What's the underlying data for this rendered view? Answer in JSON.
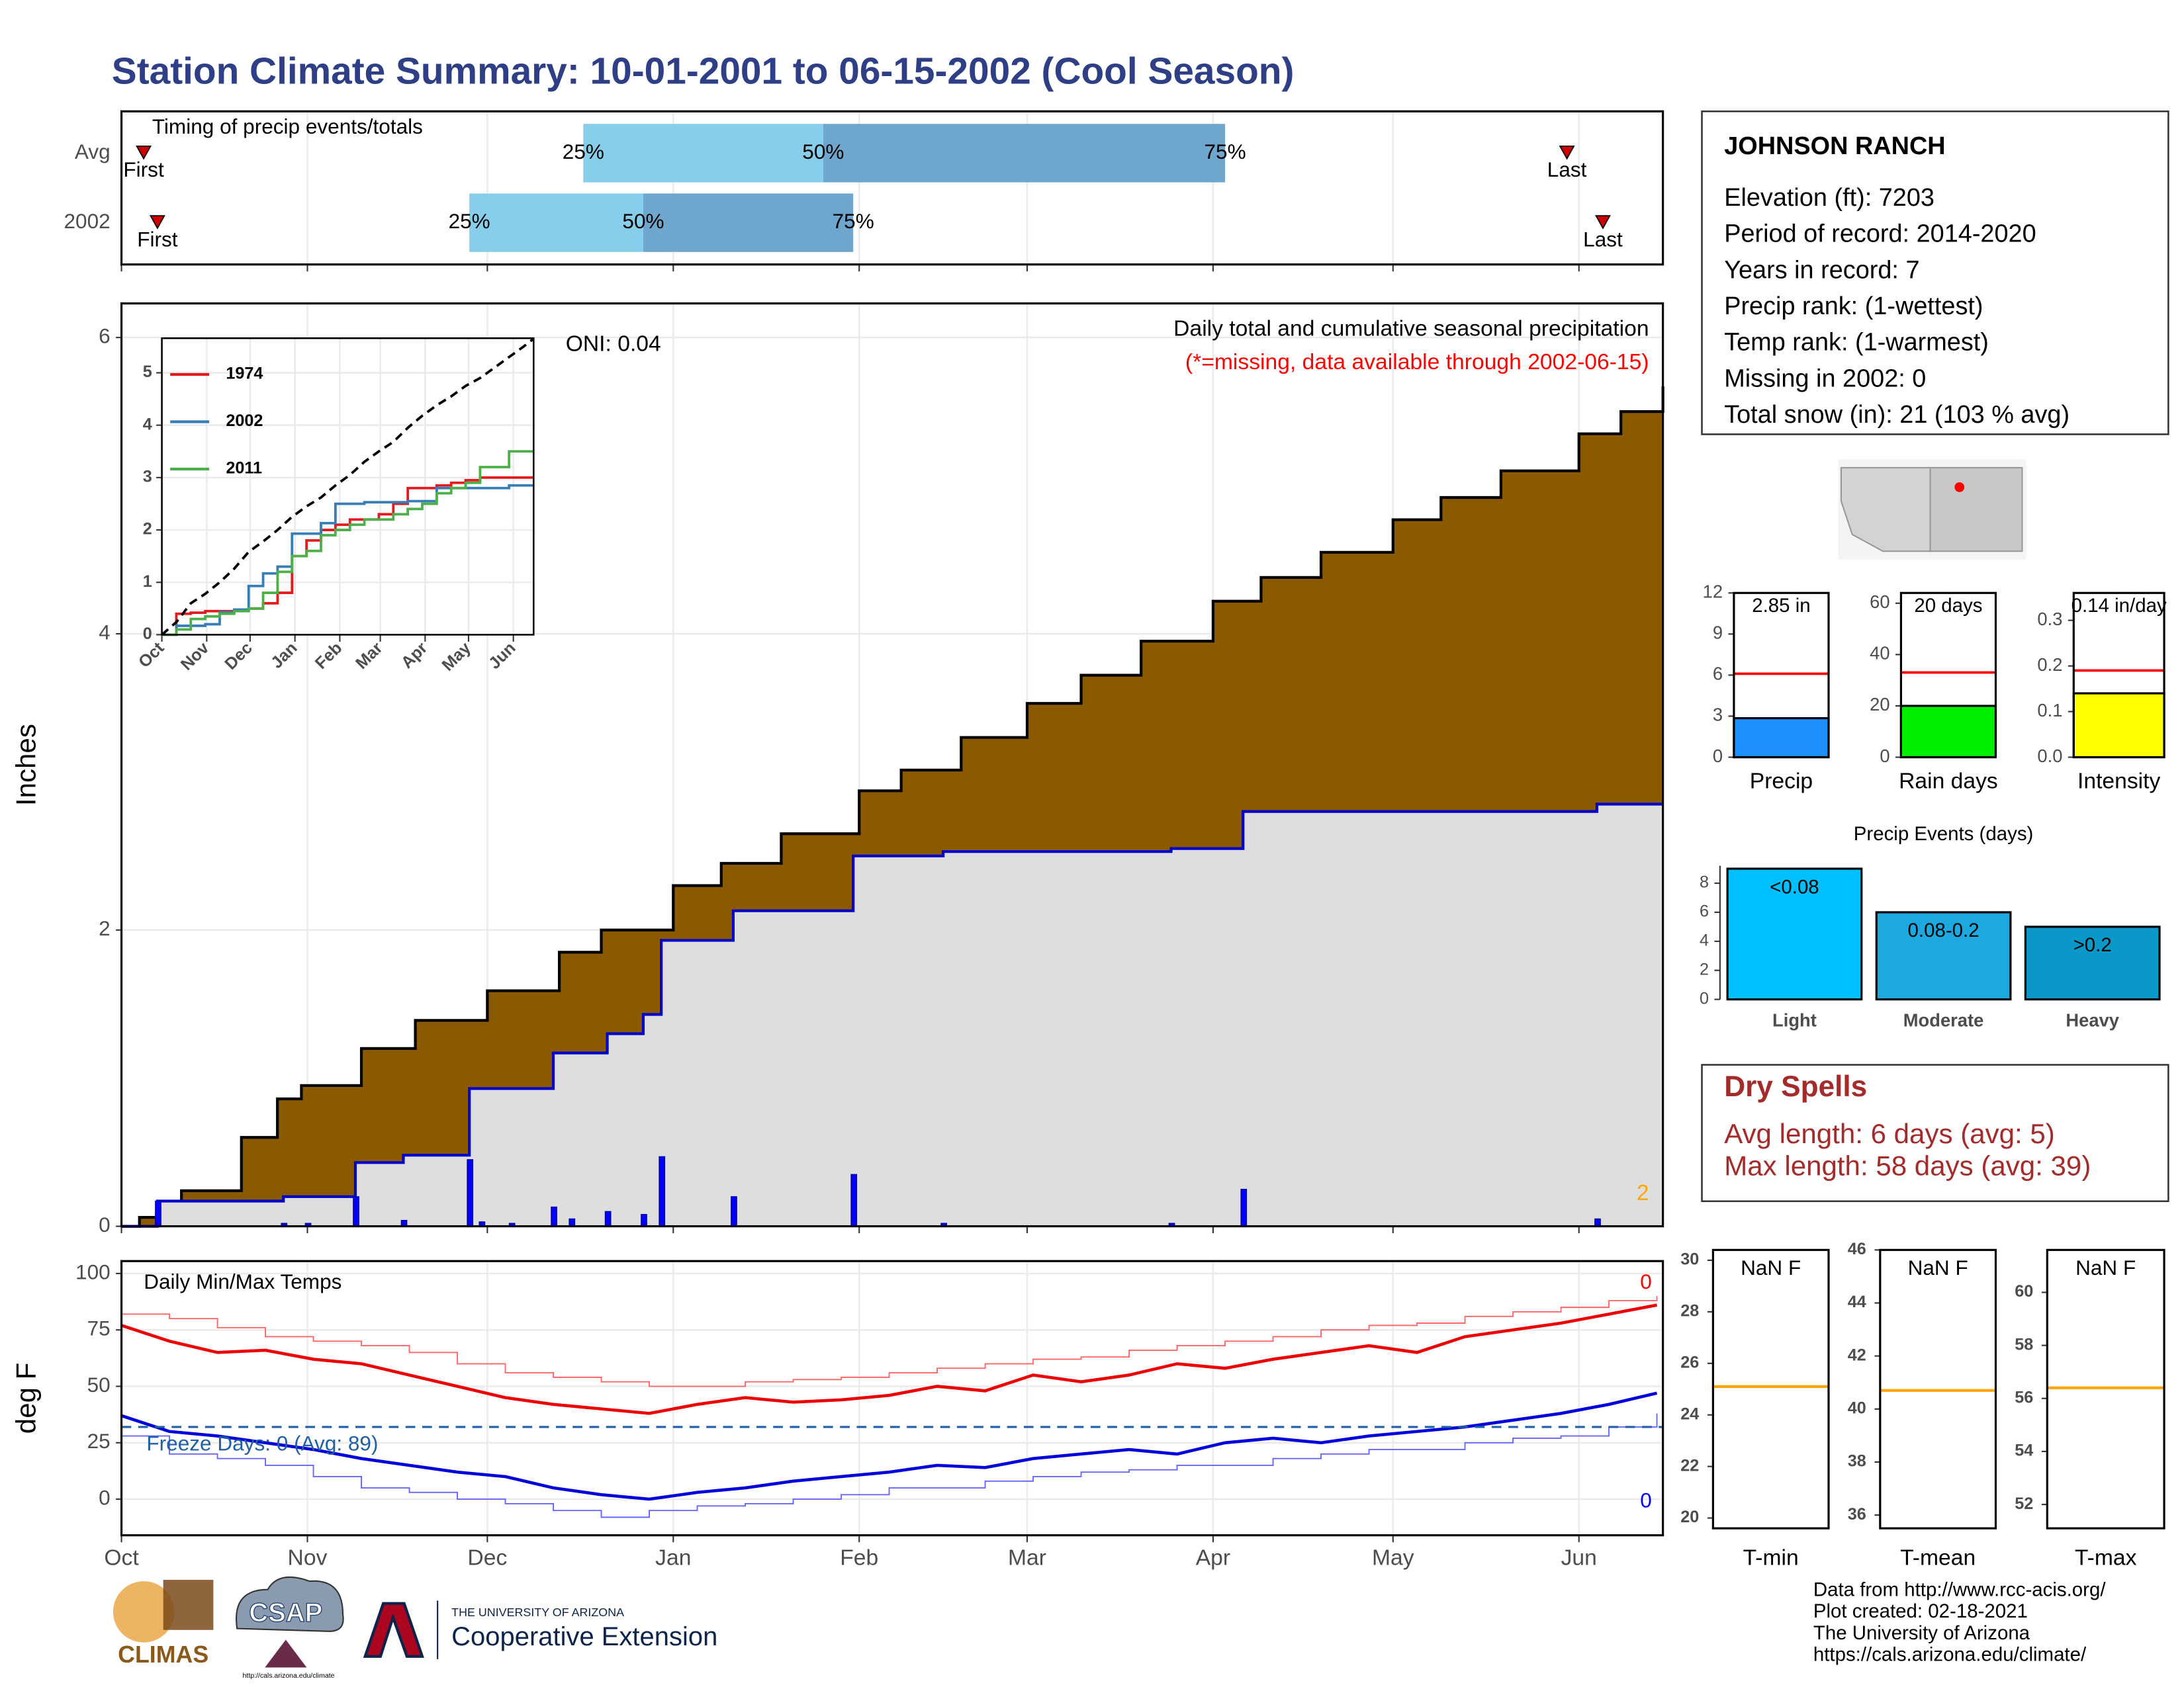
{
  "title": "Station Climate Summary: 10-01-2001 to 06-15-2002 (Cool Season)",
  "chart_data": [
    {
      "type": "timing",
      "title": "Timing of precip events/totals",
      "categories": [
        "Avg",
        "2002"
      ],
      "points": [
        "First",
        "25%",
        "50%",
        "75%",
        "Last"
      ],
      "values": [
        [
          3.7,
          77,
          117,
          184,
          241
        ],
        [
          6,
          58,
          87,
          122,
          247
        ]
      ],
      "colors": [
        "#87ceeb",
        "#6fa6cd"
      ],
      "marker_color": "#cc0000",
      "xlim": [
        0,
        257
      ],
      "xticks": [
        0,
        31,
        61,
        92,
        123,
        151,
        182,
        212,
        243
      ],
      "grid": true
    },
    {
      "type": "precip",
      "title": "Daily total and cumulative seasonal precipitation",
      "subtitle": "(*=missing, data available through 2002-06-15)",
      "annotation": "ONI: 0.04",
      "corner_note": "2",
      "ylabel": "Inches",
      "xlim": [
        0,
        257
      ],
      "xticks": [
        0,
        31,
        61,
        92,
        123,
        151,
        182,
        212,
        243
      ],
      "ylim": [
        0,
        6.23
      ],
      "yticks": [
        0,
        2,
        4,
        6
      ],
      "grid": true,
      "series": [
        {
          "color": "#8b5a00",
          "x": [
            0,
            3,
            7,
            10,
            20,
            26,
            30,
            40,
            49,
            61,
            73,
            80,
            92,
            100,
            110,
            123,
            130,
            140,
            151,
            160,
            170,
            182,
            190,
            200,
            212,
            220,
            230,
            243,
            250,
            257
          ],
          "values": [
            0,
            0.06,
            0.15,
            0.24,
            0.6,
            0.86,
            0.95,
            1.2,
            1.39,
            1.59,
            1.85,
            2.0,
            2.3,
            2.45,
            2.65,
            2.94,
            3.08,
            3.3,
            3.53,
            3.72,
            3.95,
            4.22,
            4.38,
            4.55,
            4.77,
            4.92,
            5.1,
            5.35,
            5.5,
            5.67
          ]
        },
        {
          "color": "#0000cc",
          "fill": "#dedede",
          "x": [
            0,
            6,
            27,
            39,
            47,
            58,
            72,
            81,
            87,
            90,
            102,
            122,
            137,
            175,
            187,
            246,
            257
          ],
          "values": [
            0,
            0.17,
            0.2,
            0.43,
            0.48,
            0.93,
            1.17,
            1.3,
            1.43,
            1.93,
            2.13,
            2.5,
            2.53,
            2.55,
            2.8,
            2.85,
            2.85
          ]
        }
      ],
      "bars": {
        "color": "#0000ff",
        "x": [
          6,
          27,
          31,
          39,
          47,
          58,
          60,
          65,
          72,
          75,
          81,
          87,
          90,
          102,
          122,
          137,
          175,
          187,
          246
        ],
        "values": [
          0.17,
          0.02,
          0.02,
          0.2,
          0.04,
          0.45,
          0.03,
          0.02,
          0.13,
          0.05,
          0.1,
          0.08,
          0.47,
          0.2,
          0.35,
          0.02,
          0.02,
          0.25,
          0.05
        ]
      }
    },
    {
      "type": "inset",
      "xlim": [
        0,
        257
      ],
      "xticks": [
        {
          "value": 0,
          "label": "Oct"
        },
        {
          "value": 31,
          "label": "Nov"
        },
        {
          "value": 61,
          "label": "Dec"
        },
        {
          "value": 92,
          "label": "Jan"
        },
        {
          "value": 123,
          "label": "Feb"
        },
        {
          "value": 151,
          "label": "Mar"
        },
        {
          "value": 182,
          "label": "Apr"
        },
        {
          "value": 212,
          "label": "May"
        },
        {
          "value": 243,
          "label": "Jun"
        }
      ],
      "ylim": [
        0,
        5.66
      ],
      "yticks": [
        0,
        1,
        2,
        3,
        4,
        5
      ],
      "grid": true,
      "x": [
        0,
        10,
        20,
        30,
        40,
        50,
        60,
        70,
        80,
        90,
        100,
        110,
        120,
        130,
        140,
        150,
        160,
        170,
        180,
        190,
        200,
        210,
        220,
        230,
        240,
        250,
        257
      ],
      "series": [
        {
          "name": "1974",
          "color": "#e41a1c",
          "values": [
            0,
            0.4,
            0.42,
            0.45,
            0.45,
            0.48,
            0.5,
            0.6,
            0.8,
            1.5,
            1.8,
            2.0,
            2.1,
            2.2,
            2.2,
            2.3,
            2.5,
            2.8,
            2.8,
            2.85,
            2.9,
            2.95,
            3.0,
            3.0,
            3.0,
            3.0,
            3.0
          ]
        },
        {
          "name": "2002",
          "color": "#377eb8",
          "values": [
            0,
            0.17,
            0.17,
            0.2,
            0.43,
            0.48,
            0.93,
            1.17,
            1.3,
            1.93,
            1.93,
            2.13,
            2.5,
            2.5,
            2.53,
            2.53,
            2.53,
            2.55,
            2.55,
            2.8,
            2.8,
            2.8,
            2.8,
            2.8,
            2.85,
            2.85,
            2.85
          ]
        },
        {
          "name": "2011",
          "color": "#4daf4a",
          "values": [
            0,
            0.1,
            0.3,
            0.35,
            0.4,
            0.45,
            0.5,
            0.8,
            1.2,
            1.5,
            1.6,
            1.9,
            2.0,
            2.1,
            2.2,
            2.2,
            2.3,
            2.4,
            2.5,
            2.7,
            2.8,
            2.9,
            3.2,
            3.2,
            3.5,
            3.5,
            3.5
          ]
        },
        {
          "color": "#000000",
          "dash": true,
          "values": [
            0,
            0.24,
            0.6,
            0.78,
            1.0,
            1.26,
            1.58,
            1.78,
            2.0,
            2.25,
            2.45,
            2.62,
            2.85,
            3.05,
            3.3,
            3.5,
            3.68,
            3.95,
            4.18,
            4.38,
            4.55,
            4.75,
            4.9,
            5.1,
            5.3,
            5.5,
            5.65
          ]
        }
      ]
    },
    {
      "type": "temps",
      "title": "Daily Min/Max Temps",
      "ylabel": "deg F",
      "freeze_label": "Freeze Days: 0 (Avg: 89)",
      "max_note": "0",
      "min_note": "0",
      "freeze": 32,
      "xlim": [
        0,
        257
      ],
      "xticks": [
        {
          "value": 0,
          "label": "Oct"
        },
        {
          "value": 31,
          "label": "Nov"
        },
        {
          "value": 61,
          "label": "Dec"
        },
        {
          "value": 92,
          "label": "Jan"
        },
        {
          "value": 123,
          "label": "Feb"
        },
        {
          "value": 151,
          "label": "Mar"
        },
        {
          "value": 182,
          "label": "Apr"
        },
        {
          "value": 212,
          "label": "May"
        },
        {
          "value": 243,
          "label": "Jun"
        }
      ],
      "ylim": [
        -16,
        105.5
      ],
      "yticks": [
        0,
        25,
        50,
        75,
        100
      ],
      "grid": true,
      "x": [
        0,
        8,
        16,
        24,
        32,
        40,
        48,
        56,
        64,
        72,
        80,
        88,
        96,
        104,
        112,
        120,
        128,
        136,
        144,
        152,
        160,
        168,
        176,
        184,
        192,
        200,
        208,
        216,
        224,
        232,
        240,
        248,
        256
      ],
      "series": [
        {
          "color": "#ff6666",
          "thin": true,
          "values": [
            82,
            80,
            76,
            72,
            70,
            68,
            65,
            60,
            56,
            54,
            52,
            50,
            50,
            52,
            53,
            54,
            56,
            58,
            60,
            62,
            63,
            66,
            68,
            70,
            72,
            75,
            77,
            78,
            81,
            83,
            85,
            88,
            90
          ]
        },
        {
          "color": "#ee0000",
          "values": [
            77,
            70,
            65,
            66,
            62,
            60,
            55,
            50,
            45,
            42,
            40,
            38,
            42,
            45,
            43,
            44,
            46,
            50,
            48,
            55,
            52,
            55,
            60,
            58,
            62,
            65,
            68,
            65,
            72,
            75,
            78,
            82,
            86
          ]
        },
        {
          "color": "#6666ff",
          "thin": true,
          "values": [
            28,
            20,
            18,
            15,
            10,
            5,
            3,
            0,
            -2,
            -5,
            -8,
            -5,
            -3,
            -2,
            0,
            2,
            5,
            5,
            8,
            10,
            12,
            13,
            15,
            15,
            18,
            20,
            22,
            22,
            25,
            27,
            28,
            32,
            38
          ]
        },
        {
          "color": "#0000dd",
          "values": [
            37,
            30,
            28,
            25,
            22,
            18,
            15,
            12,
            10,
            5,
            2,
            0,
            3,
            5,
            8,
            10,
            12,
            15,
            14,
            18,
            20,
            22,
            20,
            25,
            27,
            25,
            28,
            30,
            32,
            35,
            38,
            42,
            47
          ]
        }
      ]
    },
    {
      "type": "summary_bar",
      "categories": [
        "Precip"
      ],
      "values": [
        2.85
      ],
      "value_labels": [
        "2.85 in"
      ],
      "average": 6.1,
      "color": "#1e90ff",
      "ylim": [
        0,
        12
      ],
      "yticks": [
        0,
        3,
        6,
        9,
        12
      ]
    },
    {
      "type": "summary_bar",
      "categories": [
        "Rain days"
      ],
      "values": [
        20
      ],
      "value_labels": [
        "20 days"
      ],
      "average": 33,
      "color": "#00ee00",
      "ylim": [
        0,
        64
      ],
      "yticks": [
        0,
        20,
        40,
        60
      ]
    },
    {
      "type": "summary_bar",
      "categories": [
        "Intensity"
      ],
      "values": [
        0.14
      ],
      "value_labels": [
        "0.14 in/day"
      ],
      "average": 0.19,
      "color": "#ffff00",
      "ylim": [
        0,
        0.36
      ],
      "yticks": [
        {
          "value": 0,
          "label": "0.0"
        },
        {
          "value": 0.1,
          "label": "0.1"
        },
        {
          "value": 0.2,
          "label": "0.2"
        },
        {
          "value": 0.3,
          "label": "0.3"
        }
      ]
    },
    {
      "type": "events",
      "title": "Precip Events (days)",
      "categories": [
        "Light",
        "Moderate",
        "Heavy"
      ],
      "bin_labels": [
        "<0.08",
        "0.08-0.2",
        ">0.2"
      ],
      "values": [
        9,
        6,
        5
      ],
      "colors": [
        "#00bfff",
        "#1ca9e0",
        "#0a98c8"
      ],
      "ylim": [
        0,
        9.2
      ],
      "yticks": [
        0,
        2,
        4,
        6,
        8
      ]
    },
    {
      "type": "temp_gauge",
      "categories": [
        "T-min"
      ],
      "annotation": "NaN F",
      "value": 25.1,
      "color": "#ffa500",
      "ylim": [
        19.6,
        30.4
      ],
      "yticks": [
        20,
        22,
        24,
        26,
        28,
        30
      ]
    },
    {
      "type": "temp_gauge",
      "categories": [
        "T-mean"
      ],
      "annotation": "NaN F",
      "value": 40.7,
      "color": "#ffa500",
      "ylim": [
        35.5,
        46.0
      ],
      "yticks": [
        36,
        38,
        40,
        42,
        44,
        46
      ]
    },
    {
      "type": "temp_gauge",
      "categories": [
        "T-max"
      ],
      "annotation": "NaN F",
      "value": 56.4,
      "color": "#ffa500",
      "ylim": [
        51.1,
        61.6
      ],
      "yticks": [
        52,
        54,
        56,
        58,
        60
      ]
    }
  ],
  "station": {
    "name": "JOHNSON RANCH",
    "lines": [
      "Elevation (ft): 7203",
      "Period of record: 2014-2020",
      "Years in record: 7",
      "Precip rank:  (1-wettest)",
      "Temp rank:  (1-warmest)",
      "Missing in 2002: 0",
      "Total snow (in): 21 (103 % avg)"
    ]
  },
  "dry_spells": {
    "title": "Dry Spells",
    "lines": [
      "Avg length: 6 days (avg: 5)",
      "Max length: 58 days (avg: 39)"
    ]
  },
  "footer": [
    "Data from http://www.rcc-acis.org/",
    "Plot created: 02-18-2021",
    "The University of Arizona",
    "https://cals.arizona.edu/climate/"
  ],
  "logos": {
    "climas": "CLIMAS",
    "csap": "CSAP",
    "csap_url": "http://cals.arizona.edu/climate",
    "ua": "THE UNIVERSITY OF ARIZONA",
    "extension": "Cooperative Extension"
  }
}
